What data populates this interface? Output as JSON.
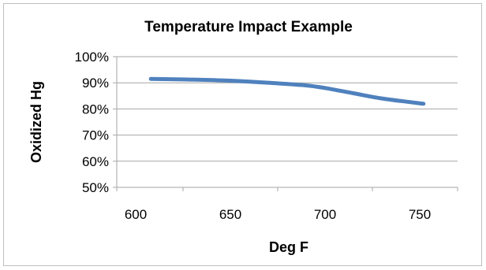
{
  "chart_data": {
    "type": "line",
    "title": "Temperature Impact  Example",
    "xlabel": "Deg F",
    "ylabel": "Oxidized Hg",
    "xlim": [
      590,
      770
    ],
    "ylim": [
      0.5,
      1.0
    ],
    "x_ticks": [
      600,
      650,
      700,
      750
    ],
    "x_tick_labels": [
      "600",
      "650",
      "700",
      "750"
    ],
    "y_ticks": [
      0.5,
      0.6,
      0.7,
      0.8,
      0.9,
      1.0
    ],
    "y_tick_labels": [
      "50%",
      "60%",
      "70%",
      "80%",
      "90%",
      "100%"
    ],
    "grid": true,
    "legend": "none",
    "series": [
      {
        "color": "#4f81bd",
        "x": [
          608,
          625,
          650,
          675,
          690,
          700,
          715,
          730,
          752
        ],
        "y": [
          0.915,
          0.913,
          0.908,
          0.898,
          0.89,
          0.88,
          0.86,
          0.84,
          0.82
        ]
      }
    ]
  }
}
